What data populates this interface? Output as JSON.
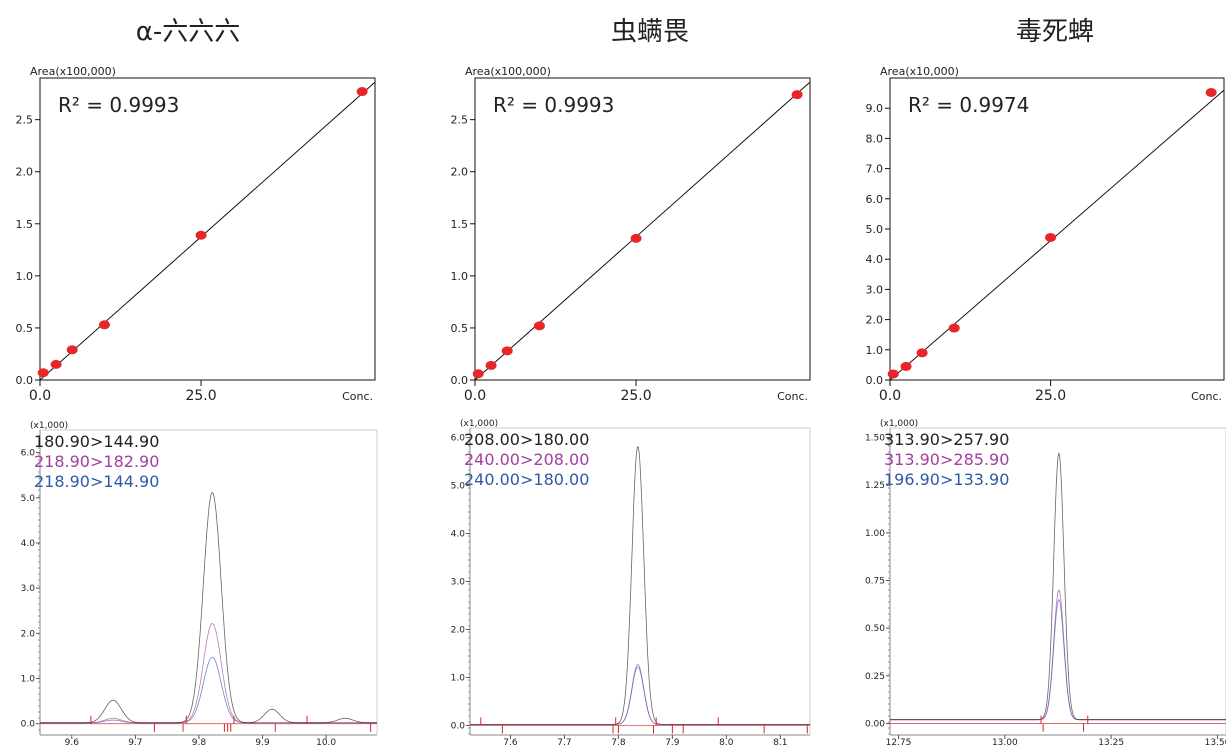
{
  "chart_data": [
    {
      "type": "scatter",
      "title": "α-六六六",
      "ylabel": "Area(x100,000)",
      "xlabel": "Conc.",
      "r2": "R² = 0.9993",
      "xlim": [
        0,
        52
      ],
      "ylim": [
        0,
        2.9
      ],
      "yticks": [
        0.0,
        0.5,
        1.0,
        1.5,
        2.0,
        2.5
      ],
      "ytick_labels": [
        "0.0",
        "0.5",
        "1.0",
        "1.5",
        "2.0",
        "2.5"
      ],
      "xticks": [
        0,
        25
      ],
      "xtick_labels": [
        "0.0",
        "25.0"
      ],
      "points": [
        [
          0.5,
          0.07
        ],
        [
          2.5,
          0.15
        ],
        [
          5,
          0.29
        ],
        [
          10,
          0.53
        ],
        [
          25,
          1.39
        ],
        [
          50,
          2.77
        ]
      ],
      "fit": [
        [
          0,
          0.0
        ],
        [
          52,
          2.86
        ]
      ],
      "color": "#e8262a"
    },
    {
      "type": "scatter",
      "title": "虫螨畏",
      "ylabel": "Area(x100,000)",
      "xlabel": "Conc.",
      "r2": "R² = 0.9993",
      "xlim": [
        0,
        52
      ],
      "ylim": [
        0,
        2.9
      ],
      "yticks": [
        0.0,
        0.5,
        1.0,
        1.5,
        2.0,
        2.5
      ],
      "ytick_labels": [
        "0.0",
        "0.5",
        "1.0",
        "1.5",
        "2.0",
        "2.5"
      ],
      "xticks": [
        0,
        25
      ],
      "xtick_labels": [
        "0.0",
        "25.0"
      ],
      "points": [
        [
          0.5,
          0.06
        ],
        [
          2.5,
          0.14
        ],
        [
          5,
          0.28
        ],
        [
          10,
          0.52
        ],
        [
          25,
          1.36
        ],
        [
          50,
          2.74
        ]
      ],
      "fit": [
        [
          0,
          0.0
        ],
        [
          52,
          2.86
        ]
      ],
      "color": "#e8262a"
    },
    {
      "type": "scatter",
      "title": "毒死蜱",
      "ylabel": "Area(x10,000)",
      "xlabel": "Conc.",
      "r2": "R² = 0.9974",
      "xlim": [
        0,
        52
      ],
      "ylim": [
        0,
        10.0
      ],
      "yticks": [
        0.0,
        1.0,
        2.0,
        3.0,
        4.0,
        5.0,
        6.0,
        7.0,
        8.0,
        9.0
      ],
      "ytick_labels": [
        "0.0",
        "1.0",
        "2.0",
        "3.0",
        "4.0",
        "5.0",
        "6.0",
        "7.0",
        "8.0",
        "9.0"
      ],
      "xticks": [
        0,
        25
      ],
      "xtick_labels": [
        "0.0",
        "25.0"
      ],
      "points": [
        [
          0.5,
          0.2
        ],
        [
          2.5,
          0.45
        ],
        [
          5,
          0.9
        ],
        [
          10,
          1.72
        ],
        [
          25,
          4.72
        ],
        [
          50,
          9.52
        ]
      ],
      "fit": [
        [
          0,
          0.0
        ],
        [
          52,
          9.6
        ]
      ],
      "color": "#e8262a"
    },
    {
      "type": "line",
      "unit": "(x1,000)",
      "xlim": [
        9.55,
        10.08
      ],
      "ylim": [
        -0.25,
        6.5
      ],
      "yticks": [
        0.0,
        1.0,
        2.0,
        3.0,
        4.0,
        5.0,
        6.0
      ],
      "ytick_labels": [
        "0.0",
        "1.0",
        "2.0",
        "3.0",
        "4.0",
        "5.0",
        "6.0"
      ],
      "xticks": [
        9.6,
        9.7,
        9.8,
        9.9,
        10.0
      ],
      "xtick_labels": [
        "9.6",
        "9.7",
        "9.8",
        "9.9",
        "10.0"
      ],
      "series": [
        {
          "name": "180.90>144.90",
          "color": "#222222",
          "peaks": [
            [
              9.821,
              5.1,
              0.014
            ],
            [
              9.665,
              0.5,
              0.013
            ],
            [
              9.915,
              0.3,
              0.012
            ],
            [
              10.03,
              0.1,
              0.012
            ]
          ]
        },
        {
          "name": "218.90>182.90",
          "color": "#a040a0",
          "peaks": [
            [
              9.821,
              2.2,
              0.014
            ],
            [
              9.665,
              0.1,
              0.013
            ]
          ]
        },
        {
          "name": "218.90>144.90",
          "color": "#2e5aa8",
          "peaks": [
            [
              9.821,
              1.45,
              0.014
            ],
            [
              9.665,
              0.06,
              0.013
            ]
          ]
        }
      ],
      "marks": [
        9.63,
        9.73,
        9.775,
        9.78,
        9.84,
        9.845,
        9.855,
        9.85,
        9.92,
        9.97,
        10.07
      ]
    },
    {
      "type": "line",
      "unit": "(x1,000)",
      "xlim": [
        7.525,
        8.155
      ],
      "ylim": [
        -0.2,
        6.2
      ],
      "yticks": [
        0.0,
        1.0,
        2.0,
        3.0,
        4.0,
        5.0,
        6.0
      ],
      "ytick_labels": [
        "0.0",
        "1.0",
        "2.0",
        "3.0",
        "4.0",
        "5.0",
        "6.0"
      ],
      "xticks": [
        7.6,
        7.7,
        7.8,
        7.9,
        8.0,
        8.1
      ],
      "xtick_labels": [
        "7.6",
        "7.7",
        "7.8",
        "7.9",
        "8.0",
        "8.1"
      ],
      "series": [
        {
          "name": "208.00>180.00",
          "color": "#222222",
          "peaks": [
            [
              7.836,
              5.8,
              0.011
            ]
          ]
        },
        {
          "name": "240.00>208.00",
          "color": "#a040a0",
          "peaks": [
            [
              7.836,
              1.25,
              0.011
            ]
          ]
        },
        {
          "name": "240.00>180.00",
          "color": "#2e5aa8",
          "peaks": [
            [
              7.836,
              1.2,
              0.011
            ]
          ]
        }
      ],
      "marks": [
        7.545,
        7.585,
        7.79,
        7.795,
        7.8,
        7.865,
        7.87,
        7.9,
        7.92,
        7.985,
        8.07,
        8.15
      ]
    },
    {
      "type": "line",
      "unit": "(x1,000)",
      "xlim": [
        12.73,
        13.52
      ],
      "ylim": [
        -0.06,
        1.55
      ],
      "yticks": [
        0.0,
        0.25,
        0.5,
        0.75,
        1.0,
        1.25,
        1.5
      ],
      "ytick_labels": [
        "0.00",
        "0.25",
        "0.50",
        "0.75",
        "1.00",
        "1.25",
        "1.50"
      ],
      "xticks": [
        12.75,
        13.0,
        13.25,
        13.5
      ],
      "xtick_labels": [
        "12.75",
        "13.00",
        "13.25",
        "13.50"
      ],
      "series": [
        {
          "name": "313.90>257.90",
          "color": "#222222",
          "peaks": [
            [
              13.127,
              1.4,
              0.012
            ]
          ]
        },
        {
          "name": "313.90>285.90",
          "color": "#a040a0",
          "peaks": [
            [
              13.127,
              0.68,
              0.012
            ]
          ]
        },
        {
          "name": "196.90>133.90",
          "color": "#2e5aa8",
          "peaks": [
            [
              13.127,
              0.63,
              0.012
            ]
          ]
        }
      ],
      "marks": [
        13.085,
        13.09,
        13.185,
        13.195
      ]
    }
  ]
}
